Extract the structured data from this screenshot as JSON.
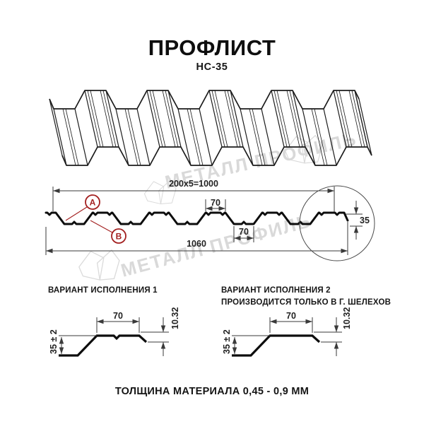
{
  "title": "ПРОФЛИСТ",
  "subtitle": "НС-35",
  "watermark": {
    "text": "МЕТАЛЛ ПРОФИЛЬ"
  },
  "section_drawing": {
    "dim_coverage": "200x5=1000",
    "dim_top_flange": "70",
    "dim_bottom_flange": "70",
    "dim_total_width": "1060",
    "dim_height": "35",
    "label_a": "A",
    "label_b": "B",
    "accent_color": "#a32020"
  },
  "variant1": {
    "heading": "ВАРИАНТ ИСПОЛНЕНИЯ 1",
    "dim_top": "70",
    "dim_lip": "10.32",
    "dim_height": "35 ± 2"
  },
  "variant2": {
    "heading_line1": "ВАРИАНТ ИСПОЛНЕНИЯ 2",
    "heading_line2": "ПРОИЗВОДИТСЯ ТОЛЬКО В Г. ШЕЛЕХОВ",
    "dim_top": "70",
    "dim_lip": "10.32",
    "dim_height": "35 ± 2"
  },
  "footer": {
    "thickness_note": "ТОЛЩИНА МАТЕРИАЛА 0,45 - 0,9 ММ"
  }
}
